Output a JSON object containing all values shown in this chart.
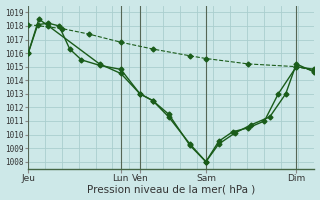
{
  "background_color": "#cde8e8",
  "grid_color": "#aacece",
  "line_color": "#1a5c1a",
  "marker": "D",
  "marker_size": 2.5,
  "line_width": 1.0,
  "xlabel": "Pression niveau de la mer( hPa )",
  "xlabel_fontsize": 7.5,
  "ylim": [
    1007.5,
    1019.5
  ],
  "yticks": [
    1008,
    1009,
    1010,
    1011,
    1012,
    1013,
    1014,
    1015,
    1016,
    1017,
    1018,
    1019
  ],
  "day_labels": [
    {
      "label": "Jeu",
      "x": 43
    },
    {
      "label": "Lun",
      "x": 130
    },
    {
      "label": "Ven",
      "x": 148
    },
    {
      "label": "Sam",
      "x": 210
    },
    {
      "label": "Dim",
      "x": 295
    }
  ],
  "xmin": 43,
  "xmax": 312,
  "series": [
    {
      "x": [
        43,
        75,
        100,
        130,
        160,
        195,
        210,
        250,
        295,
        312
      ],
      "y": [
        1018.1,
        1017.8,
        1017.4,
        1016.8,
        1016.3,
        1015.8,
        1015.6,
        1015.2,
        1015.0,
        1014.7
      ],
      "style": "dashed"
    },
    {
      "x": [
        43,
        52,
        62,
        72,
        82,
        93,
        110,
        130,
        148,
        160,
        175,
        195,
        210,
        222,
        235,
        250,
        265,
        278,
        295,
        312
      ],
      "y": [
        1016.0,
        1018.1,
        1018.2,
        1018.0,
        1016.3,
        1015.5,
        1015.1,
        1014.8,
        1013.0,
        1012.5,
        1011.5,
        1009.2,
        1008.0,
        1009.5,
        1010.2,
        1010.5,
        1011.0,
        1013.0,
        1015.0,
        1014.8
      ],
      "style": "solid"
    },
    {
      "x": [
        43,
        53,
        62,
        110,
        130,
        148,
        160,
        175,
        195,
        210,
        222,
        237,
        252,
        270,
        285,
        295,
        312
      ],
      "y": [
        1016.0,
        1018.5,
        1018.0,
        1015.2,
        1014.5,
        1013.0,
        1012.5,
        1011.3,
        1009.3,
        1008.0,
        1009.3,
        1010.1,
        1010.7,
        1011.3,
        1013.0,
        1015.2,
        1014.6
      ],
      "style": "solid"
    }
  ]
}
